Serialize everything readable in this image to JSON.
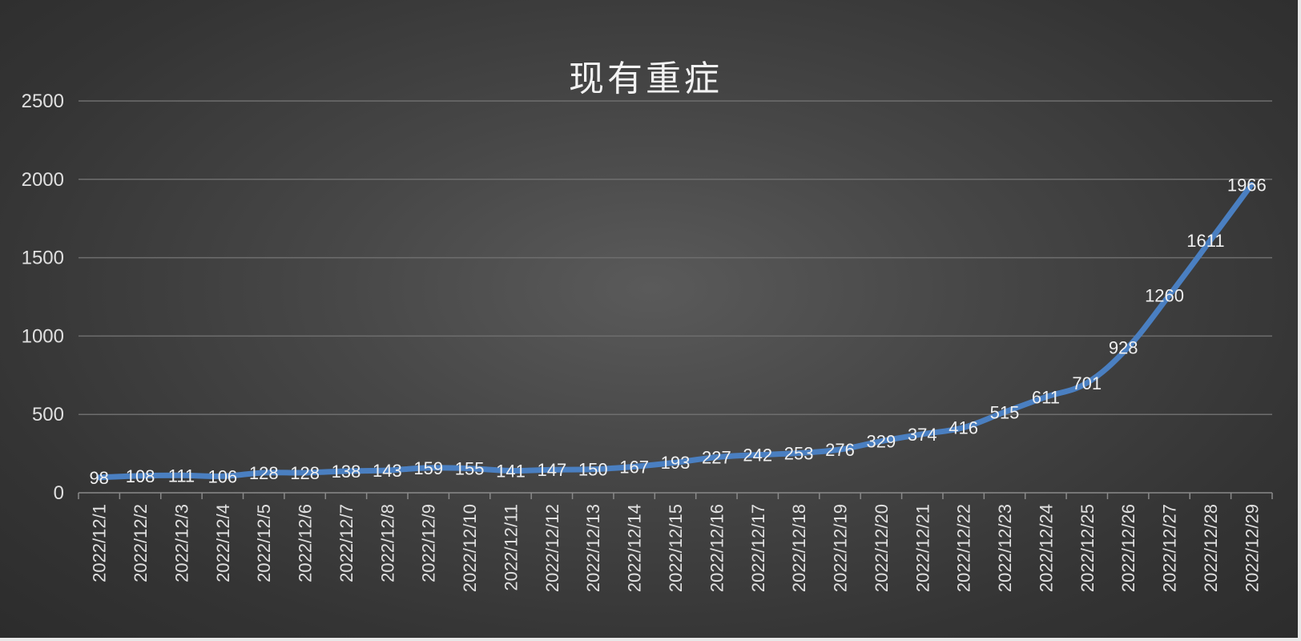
{
  "chart_data": {
    "type": "line",
    "title": "现有重症",
    "xlabel": "",
    "ylabel": "",
    "ylim": [
      0,
      2500
    ],
    "yticks": [
      "0",
      "500",
      "1000",
      "1500",
      "2000",
      "2500"
    ],
    "grid": true,
    "legend": "none",
    "categories": [
      "2022/12/1",
      "2022/12/2",
      "2022/12/3",
      "2022/12/4",
      "2022/12/5",
      "2022/12/6",
      "2022/12/7",
      "2022/12/8",
      "2022/12/9",
      "2022/12/10",
      "2022/12/11",
      "2022/12/12",
      "2022/12/13",
      "2022/12/14",
      "2022/12/15",
      "2022/12/16",
      "2022/12/17",
      "2022/12/18",
      "2022/12/19",
      "2022/12/20",
      "2022/12/21",
      "2022/12/22",
      "2022/12/23",
      "2022/12/24",
      "2022/12/25",
      "2022/12/26",
      "2022/12/27",
      "2022/12/28",
      "2022/12/29"
    ],
    "series": [
      {
        "values": [
          98,
          108,
          111,
          106,
          128,
          128,
          138,
          143,
          159,
          155,
          141,
          147,
          150,
          167,
          193,
          227,
          242,
          253,
          276,
          329,
          374,
          416,
          515,
          611,
          701,
          928,
          1260,
          1611,
          1966
        ],
        "color": "#4a7fc1"
      }
    ]
  }
}
